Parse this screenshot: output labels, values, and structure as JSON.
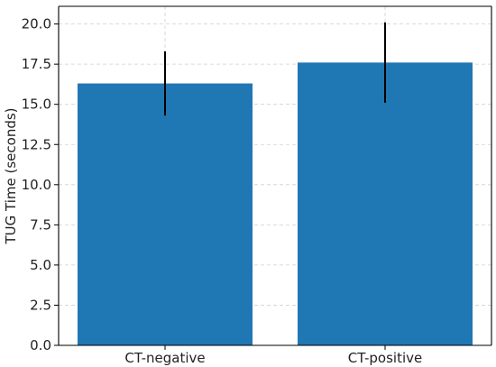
{
  "chart_data": {
    "type": "bar",
    "categories": [
      "CT-negative",
      "CT-positive"
    ],
    "values": [
      16.3,
      17.6
    ],
    "error": [
      2.0,
      2.5
    ],
    "ylabel": "TUG Time (seconds)",
    "xlabel": "",
    "ylim": [
      0,
      21.1
    ],
    "yticks": [
      "0.0",
      "2.5",
      "5.0",
      "7.5",
      "10.0",
      "12.5",
      "15.0",
      "17.5",
      "20.0"
    ],
    "grid": true,
    "bar_color": "#1f77b4",
    "error_color": "#000000"
  }
}
